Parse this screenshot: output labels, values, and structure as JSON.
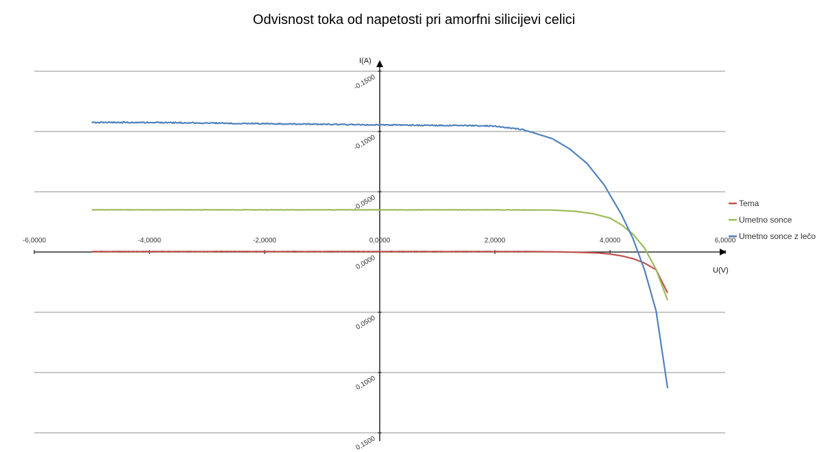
{
  "chart_data": {
    "type": "line",
    "title": "Odvisnost toka od napetosti pri amorfni silicijevi celici",
    "xlabel": "U(V)",
    "ylabel": "I(A)",
    "xlim": [
      -6,
      6
    ],
    "ylim": [
      -0.15,
      0.15
    ],
    "y_inverted": true,
    "x_ticks": [
      -6,
      -4,
      -2,
      0,
      2,
      4,
      6
    ],
    "x_tick_labels": [
      "-6,0000",
      "-4,0000",
      "-2,0000",
      "0,0000",
      "2,0000",
      "4,0000",
      "6,0000"
    ],
    "y_ticks": [
      -0.15,
      -0.1,
      -0.05,
      0,
      0.05,
      0.1,
      0.15
    ],
    "y_tick_labels": [
      "-0,1500",
      "-0,1000",
      "-0,0500",
      "0,0000",
      "0,0500",
      "0,1000",
      "0,1500"
    ],
    "grid": "horizontal",
    "legend_position": "right",
    "series": [
      {
        "name": "Tema",
        "color": "#c0504d",
        "x": [
          -5,
          -4,
          -2,
          0,
          2,
          2.5,
          3,
          3.5,
          3.8,
          4.0,
          4.2,
          4.4,
          4.6,
          4.8,
          5.0
        ],
        "y": [
          -0.0004,
          -0.0004,
          -0.0004,
          -0.0004,
          -0.0004,
          -0.0004,
          -0.0002,
          0.0003,
          0.0008,
          0.0017,
          0.0032,
          0.0055,
          0.0092,
          0.0147,
          0.034
        ]
      },
      {
        "name": "Umetno sonce",
        "color": "#9bbb59",
        "x": [
          -5,
          -4,
          -2,
          0,
          2,
          3,
          3.4,
          3.7,
          4.0,
          4.2,
          4.4,
          4.6,
          4.8,
          5.0
        ],
        "y": [
          -0.035,
          -0.035,
          -0.035,
          -0.035,
          -0.035,
          -0.0348,
          -0.0338,
          -0.0318,
          -0.0282,
          -0.0225,
          -0.0148,
          -0.0032,
          0.0145,
          0.04
        ]
      },
      {
        "name": "Umetno sonce z lečo",
        "color": "#4f81bd",
        "x": [
          -5,
          -4,
          -2,
          0,
          1,
          1.5,
          2.0,
          2.5,
          3.0,
          3.3,
          3.6,
          3.9,
          4.2,
          4.4,
          4.6,
          4.8,
          5.0
        ],
        "y": [
          -0.1075,
          -0.1075,
          -0.1065,
          -0.1055,
          -0.105,
          -0.105,
          -0.1045,
          -0.1015,
          -0.094,
          -0.0855,
          -0.0735,
          -0.0555,
          -0.031,
          -0.011,
          0.015,
          0.0488,
          0.113
        ]
      }
    ]
  }
}
